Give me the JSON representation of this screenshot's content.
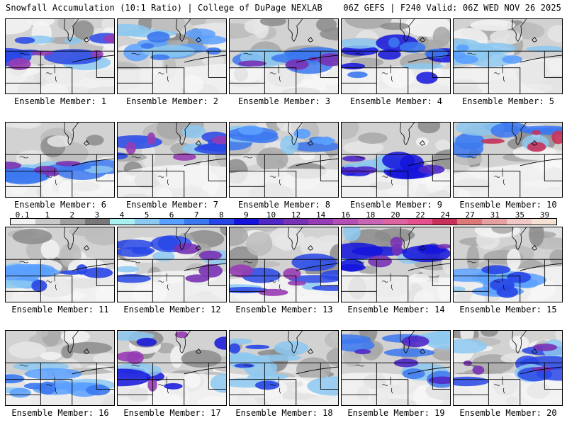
{
  "header": {
    "title": "Snowfall Accumulation (10:1 Ratio) | College of DuPage NEXLAB",
    "run_info": "06Z GEFS | F240 Valid: 06Z WED NOV 26 2025"
  },
  "colorbar": {
    "tick_labels": [
      "0.1",
      "1",
      "2",
      "3",
      "4",
      "5",
      "6",
      "7",
      "8",
      "9",
      "10",
      "12",
      "14",
      "16",
      "18",
      "20",
      "22",
      "24",
      "27",
      "31",
      "35",
      "39"
    ],
    "colors": [
      "#f0f0f0",
      "#c8c8c8",
      "#a0a0a0",
      "#787878",
      "#aaf0f0",
      "#8cc8f0",
      "#5aa0ff",
      "#3c78f0",
      "#2846e6",
      "#1414dc",
      "#5028c8",
      "#7832b4",
      "#963cb4",
      "#b450b4",
      "#c864b4",
      "#dc64a0",
      "#e6508c",
      "#c8325a",
      "#dc7878",
      "#e6a0a0",
      "#f0c8c8",
      "#f5e1d2"
    ]
  },
  "panels": [
    {
      "label": "Ensemble Member: 1"
    },
    {
      "label": "Ensemble Member: 2"
    },
    {
      "label": "Ensemble Member: 3"
    },
    {
      "label": "Ensemble Member: 4"
    },
    {
      "label": "Ensemble Member: 5"
    },
    {
      "label": "Ensemble Member: 6"
    },
    {
      "label": "Ensemble Member: 7"
    },
    {
      "label": "Ensemble Member: 8"
    },
    {
      "label": "Ensemble Member: 9"
    },
    {
      "label": "Ensemble Member: 10"
    },
    {
      "label": "Ensemble Member: 11"
    },
    {
      "label": "Ensemble Member: 12"
    },
    {
      "label": "Ensemble Member: 13"
    },
    {
      "label": "Ensemble Member: 14"
    },
    {
      "label": "Ensemble Member: 15"
    },
    {
      "label": "Ensemble Member: 16"
    },
    {
      "label": "Ensemble Member: 17"
    },
    {
      "label": "Ensemble Member: 18"
    },
    {
      "label": "Ensemble Member: 19"
    },
    {
      "label": "Ensemble Member: 20"
    }
  ]
}
